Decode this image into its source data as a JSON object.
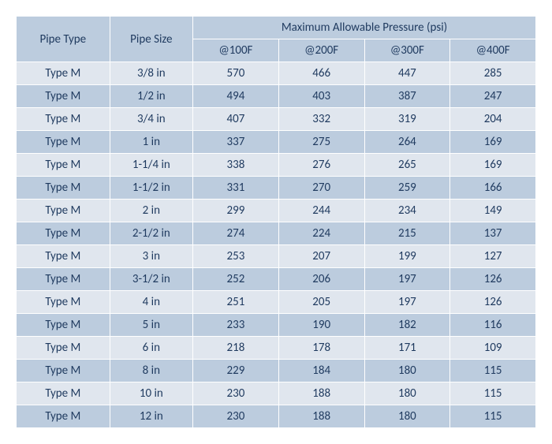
{
  "table": {
    "type": "table",
    "background_color": "#ffffff",
    "header_bg": "#bcccde",
    "row_odd_bg": "#e0e6ee",
    "row_even_bg": "#bcccde",
    "text_color": "#1f3a5f",
    "font_family": "Calibri",
    "font_size": 15,
    "border_color": "#ffffff",
    "columns": {
      "pipe_type": "Pipe Type",
      "pipe_size": "Pipe Size",
      "pressure_group": "Maximum Allowable Pressure (psi)",
      "p100": "@100F",
      "p200": "@200F",
      "p300": "@300F",
      "p400": "@400F"
    },
    "rows": [
      {
        "type": "Type M",
        "size": "3/8 in",
        "p100": "570",
        "p200": "466",
        "p300": "447",
        "p400": "285"
      },
      {
        "type": "Type M",
        "size": "1/2 in",
        "p100": "494",
        "p200": "403",
        "p300": "387",
        "p400": "247"
      },
      {
        "type": "Type M",
        "size": "3/4 in",
        "p100": "407",
        "p200": "332",
        "p300": "319",
        "p400": "204"
      },
      {
        "type": "Type M",
        "size": "1 in",
        "p100": "337",
        "p200": "275",
        "p300": "264",
        "p400": "169"
      },
      {
        "type": "Type M",
        "size": "1-1/4 in",
        "p100": "338",
        "p200": "276",
        "p300": "265",
        "p400": "169"
      },
      {
        "type": "Type M",
        "size": "1-1/2 in",
        "p100": "331",
        "p200": "270",
        "p300": "259",
        "p400": "166"
      },
      {
        "type": "Type M",
        "size": "2 in",
        "p100": "299",
        "p200": "244",
        "p300": "234",
        "p400": "149"
      },
      {
        "type": "Type M",
        "size": "2-1/2 in",
        "p100": "274",
        "p200": "224",
        "p300": "215",
        "p400": "137"
      },
      {
        "type": "Type M",
        "size": "3 in",
        "p100": "253",
        "p200": "207",
        "p300": "199",
        "p400": "127"
      },
      {
        "type": "Type M",
        "size": "3-1/2 in",
        "p100": "252",
        "p200": "206",
        "p300": "197",
        "p400": "126"
      },
      {
        "type": "Type M",
        "size": "4 in",
        "p100": "251",
        "p200": "205",
        "p300": "197",
        "p400": "126"
      },
      {
        "type": "Type M",
        "size": "5 in",
        "p100": "233",
        "p200": "190",
        "p300": "182",
        "p400": "116"
      },
      {
        "type": "Type M",
        "size": "6 in",
        "p100": "218",
        "p200": "178",
        "p300": "171",
        "p400": "109"
      },
      {
        "type": "Type M",
        "size": "8 in",
        "p100": "229",
        "p200": "184",
        "p300": "180",
        "p400": "115"
      },
      {
        "type": "Type M",
        "size": "10 in",
        "p100": "230",
        "p200": "188",
        "p300": "180",
        "p400": "115"
      },
      {
        "type": "Type M",
        "size": "12 in",
        "p100": "230",
        "p200": "188",
        "p300": "180",
        "p400": "115"
      }
    ]
  }
}
